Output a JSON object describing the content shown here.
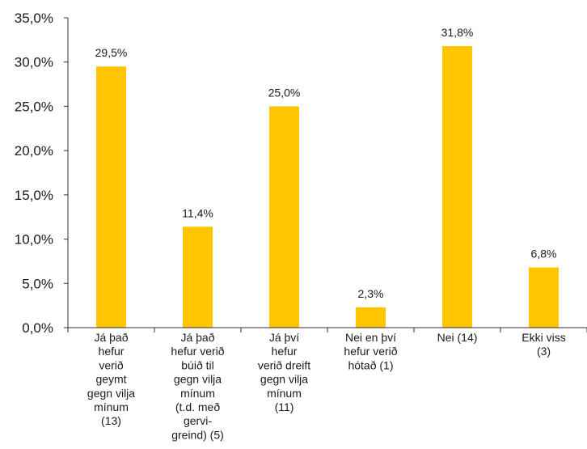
{
  "chart_data": {
    "type": "bar",
    "title": "",
    "xlabel": "",
    "ylabel": "",
    "ylim": [
      0,
      35
    ],
    "y_ticks": [
      "0,0%",
      "5,0%",
      "10,0%",
      "15,0%",
      "20,0%",
      "25,0%",
      "30,0%",
      "35,0%"
    ],
    "grid": false,
    "bar_color": "#FFC600",
    "categories": [
      [
        "Já það",
        "hefur",
        "verið",
        "geymt",
        "gegn vilja",
        "mínum",
        "(13)"
      ],
      [
        "Já það",
        "hefur verið",
        "búið til",
        "gegn vilja",
        "mínum",
        "(t.d. með",
        "gervi-",
        "greind) (5)"
      ],
      [
        "Já því",
        "hefur",
        "verið dreift",
        "gegn vilja",
        "mínum",
        "(11)"
      ],
      [
        "Nei en því",
        "hefur verið",
        "hótað (1)"
      ],
      [
        "Nei (14)"
      ],
      [
        "Ekki viss",
        "(3)"
      ]
    ],
    "values": [
      29.5,
      11.4,
      25.0,
      2.3,
      31.8,
      6.8
    ],
    "data_labels": [
      "29,5%",
      "11,4%",
      "25,0%",
      "2,3%",
      "31,8%",
      "6,8%"
    ]
  }
}
